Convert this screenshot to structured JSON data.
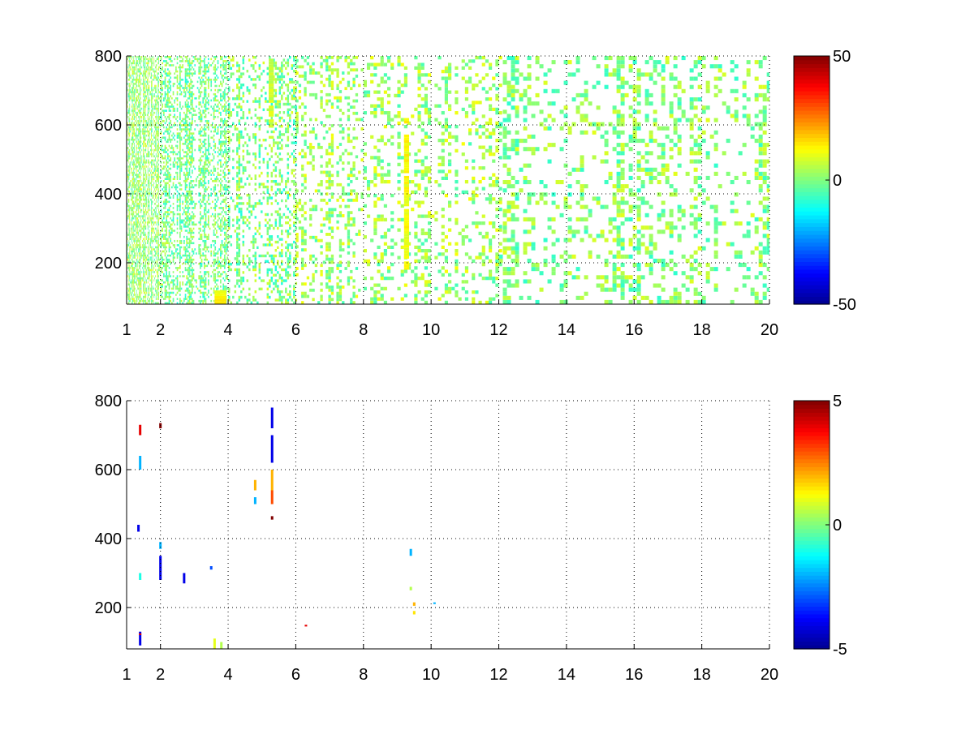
{
  "colormap": {
    "name": "jet",
    "stops": [
      "#00008f",
      "#0000ff",
      "#00ffff",
      "#ffff00",
      "#ff0000",
      "#800000"
    ]
  },
  "chart_data": [
    {
      "type": "heatmap",
      "title": "",
      "xlabel": "",
      "ylabel": "",
      "xlim": [
        1,
        20
      ],
      "ylim": [
        80,
        800
      ],
      "xticks": [
        1,
        2,
        4,
        6,
        8,
        10,
        12,
        14,
        16,
        18,
        20
      ],
      "xtick_labels": [
        "1",
        "2",
        "4",
        "6",
        "8",
        "10",
        "12",
        "14",
        "16",
        "18",
        "20"
      ],
      "yticks": [
        200,
        400,
        600,
        800
      ],
      "ytick_labels": [
        "200",
        "400",
        "600",
        "800"
      ],
      "grid": true,
      "colorbar": {
        "clim": [
          -50,
          50
        ],
        "ticks": [
          50,
          0,
          -50
        ],
        "tick_labels": [
          "50",
          "0",
          "-50"
        ]
      },
      "seed": 7,
      "columns": [
        {
          "x0": 1.0,
          "x1": 2.0,
          "density": 0.55,
          "value_mean": 2,
          "value_spread": 9,
          "col_width": 0.02,
          "row_height": 6
        },
        {
          "x0": 2.0,
          "x1": 4.0,
          "density": 0.45,
          "value_mean": -1,
          "value_spread": 9,
          "col_width": 0.04,
          "row_height": 6
        },
        {
          "x0": 4.0,
          "x1": 6.0,
          "density": 0.35,
          "value_mean": 0,
          "value_spread": 10,
          "col_width": 0.06,
          "row_height": 8
        },
        {
          "x0": 6.0,
          "x1": 8.0,
          "density": 0.28,
          "value_mean": 3,
          "value_spread": 9,
          "col_width": 0.08,
          "row_height": 9
        },
        {
          "x0": 8.0,
          "x1": 12.0,
          "density": 0.25,
          "value_mean": 3,
          "value_spread": 9,
          "col_width": 0.1,
          "row_height": 10
        },
        {
          "x0": 12.0,
          "x1": 20.0,
          "density": 0.3,
          "value_mean": 1,
          "value_spread": 9,
          "col_width": 0.12,
          "row_height": 12
        }
      ],
      "features": [
        {
          "x": 3.6,
          "x1": 3.95,
          "y0": 80,
          "y1": 120,
          "value": 12
        },
        {
          "x": 9.2,
          "x1": 9.35,
          "y0": 180,
          "y1": 620,
          "value": 12
        },
        {
          "x": 5.2,
          "x1": 5.35,
          "y0": 560,
          "y1": 790,
          "value": 8
        }
      ]
    },
    {
      "type": "heatmap",
      "title": "",
      "xlabel": "",
      "ylabel": "",
      "xlim": [
        1,
        20
      ],
      "ylim": [
        80,
        800
      ],
      "xticks": [
        1,
        2,
        4,
        6,
        8,
        10,
        12,
        14,
        16,
        18,
        20
      ],
      "xtick_labels": [
        "1",
        "2",
        "4",
        "6",
        "8",
        "10",
        "12",
        "14",
        "16",
        "18",
        "20"
      ],
      "yticks": [
        200,
        400,
        600,
        800
      ],
      "ytick_labels": [
        "200",
        "400",
        "600",
        "800"
      ],
      "grid": true,
      "colorbar": {
        "clim": [
          -5,
          5
        ],
        "ticks": [
          5,
          0,
          -5
        ],
        "tick_labels": [
          "5",
          "0",
          "-5"
        ]
      },
      "points": [
        {
          "x": 1.4,
          "y0": 700,
          "y1": 730,
          "value": 4
        },
        {
          "x": 1.4,
          "y0": 600,
          "y1": 640,
          "value": -2
        },
        {
          "x": 1.35,
          "y0": 420,
          "y1": 440,
          "value": -4
        },
        {
          "x": 1.4,
          "y0": 280,
          "y1": 300,
          "value": -1
        },
        {
          "x": 1.4,
          "y0": 90,
          "y1": 130,
          "value": -4
        },
        {
          "x": 1.4,
          "y0": 120,
          "y1": 125,
          "value": 4
        },
        {
          "x": 2.0,
          "y0": 720,
          "y1": 735,
          "value": 5
        },
        {
          "x": 2.0,
          "y0": 280,
          "y1": 350,
          "value": -4
        },
        {
          "x": 2.0,
          "y0": 370,
          "y1": 390,
          "value": -2
        },
        {
          "x": 2.7,
          "y0": 270,
          "y1": 300,
          "value": -4
        },
        {
          "x": 3.5,
          "y0": 310,
          "y1": 320,
          "value": -3
        },
        {
          "x": 3.6,
          "y0": 80,
          "y1": 110,
          "value": 1
        },
        {
          "x": 3.8,
          "y0": 80,
          "y1": 100,
          "value": 0.5
        },
        {
          "x": 4.8,
          "y0": 540,
          "y1": 570,
          "value": 2
        },
        {
          "x": 4.8,
          "y0": 500,
          "y1": 520,
          "value": -2
        },
        {
          "x": 5.3,
          "y0": 720,
          "y1": 780,
          "value": -4
        },
        {
          "x": 5.3,
          "y0": 620,
          "y1": 700,
          "value": -4
        },
        {
          "x": 5.3,
          "y0": 540,
          "y1": 600,
          "value": 2
        },
        {
          "x": 5.3,
          "y0": 500,
          "y1": 540,
          "value": 3
        },
        {
          "x": 5.3,
          "y0": 455,
          "y1": 465,
          "value": 5
        },
        {
          "x": 6.3,
          "y0": 145,
          "y1": 150,
          "value": 4
        },
        {
          "x": 9.4,
          "y0": 350,
          "y1": 370,
          "value": -2
        },
        {
          "x": 9.4,
          "y0": 250,
          "y1": 260,
          "value": 0.5
        },
        {
          "x": 9.5,
          "y0": 205,
          "y1": 215,
          "value": 2
        },
        {
          "x": 9.5,
          "y0": 180,
          "y1": 190,
          "value": 1.5
        },
        {
          "x": 10.1,
          "y0": 210,
          "y1": 215,
          "value": -2
        }
      ]
    }
  ]
}
